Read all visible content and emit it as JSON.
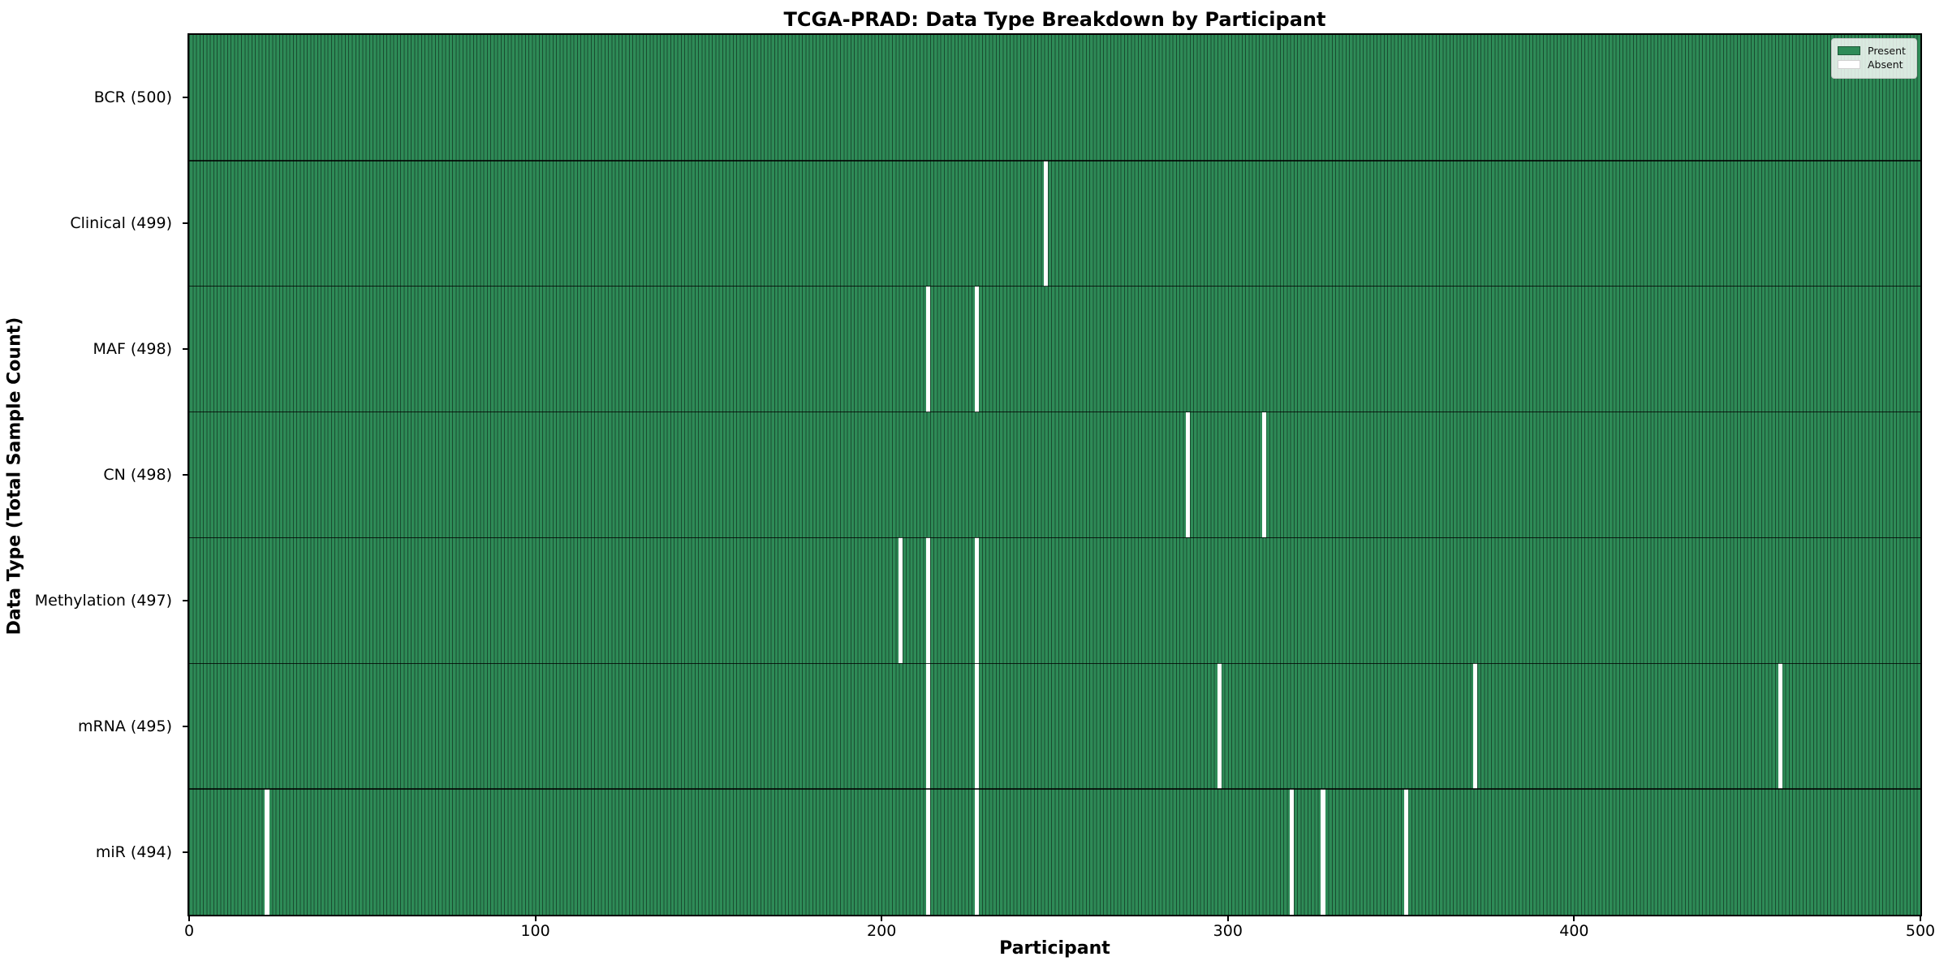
{
  "chart_data": {
    "type": "heatmap",
    "title": "TCGA-PRAD: Data Type Breakdown by Participant",
    "xlabel": "Participant",
    "ylabel": "Data Type (Total Sample Count)",
    "x_range": [
      0,
      500
    ],
    "x_ticks": [
      0,
      100,
      200,
      300,
      400,
      500
    ],
    "n_participants": 500,
    "grid": false,
    "legend_position": "upper right",
    "legend": [
      {
        "label": "Present",
        "color": "#2e8b57"
      },
      {
        "label": "Absent",
        "color": "#ffffff"
      }
    ],
    "rows": [
      {
        "label": "BCR (500)",
        "name": "bcr",
        "total": 500,
        "absent_participants": []
      },
      {
        "label": "Clinical (499)",
        "name": "clinical",
        "total": 499,
        "absent_participants": [
          247
        ]
      },
      {
        "label": "MAF (498)",
        "name": "maf",
        "total": 498,
        "absent_participants": [
          213,
          227
        ]
      },
      {
        "label": "CN (498)",
        "name": "cn",
        "total": 498,
        "absent_participants": [
          288,
          310
        ]
      },
      {
        "label": "Methylation (497)",
        "name": "methylation",
        "total": 497,
        "absent_participants": [
          205,
          213,
          227
        ]
      },
      {
        "label": "mRNA (495)",
        "name": "mrna",
        "total": 495,
        "absent_participants": [
          213,
          227,
          297,
          371,
          459
        ]
      },
      {
        "label": "miR (494)",
        "name": "mir",
        "total": 494,
        "absent_participants": [
          22,
          213,
          227,
          318,
          327,
          351
        ]
      }
    ],
    "colors": {
      "present": "#2e8b57",
      "absent": "#ffffff",
      "cell_edge": "rgba(0,0,0,0.45)",
      "row_separator": "rgba(0,0,0,0.78)",
      "axis": "#000000",
      "legend_border": "#c8c8c8"
    }
  }
}
